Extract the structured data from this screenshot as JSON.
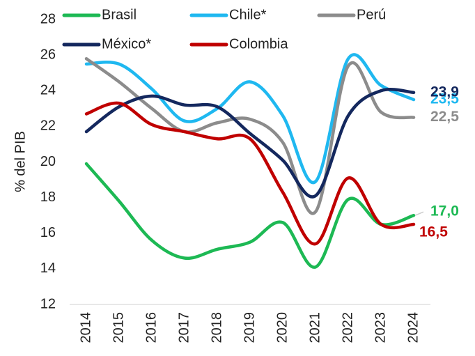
{
  "chart_data": {
    "type": "line",
    "y_label": "% del PIB",
    "categories": [
      "2014",
      "2015",
      "2016",
      "2017",
      "2018",
      "2019",
      "2020",
      "2021",
      "2022",
      "2023",
      "2024"
    ],
    "ylim": [
      12,
      28
    ],
    "yticks": [
      12,
      14,
      16,
      18,
      20,
      22,
      24,
      26,
      28
    ],
    "series": [
      {
        "name": "Brasil",
        "color": "#1db954",
        "values": [
          19.9,
          17.8,
          15.6,
          14.6,
          15.1,
          15.5,
          16.6,
          14.1,
          17.9,
          16.5,
          17.0
        ],
        "value_labels": [
          null,
          null,
          null,
          null,
          null,
          null,
          null,
          null,
          null,
          null,
          "17,0"
        ]
      },
      {
        "name": "Chile*",
        "color": "#1fb8f0",
        "values": [
          25.5,
          25.5,
          24.1,
          22.3,
          23.0,
          24.5,
          22.6,
          18.9,
          25.8,
          24.3,
          23.5
        ],
        "value_labels": [
          null,
          null,
          null,
          null,
          null,
          null,
          null,
          null,
          null,
          null,
          "23,5"
        ]
      },
      {
        "name": "Perú",
        "color": "#8c8c8c",
        "values": [
          25.8,
          24.5,
          23.0,
          21.7,
          22.2,
          22.4,
          21.1,
          17.2,
          25.4,
          22.8,
          22.5
        ],
        "value_labels": [
          null,
          null,
          null,
          null,
          null,
          null,
          null,
          null,
          null,
          null,
          "22,5"
        ]
      },
      {
        "name": "México*",
        "color": "#14285e",
        "values": [
          21.7,
          23.1,
          23.7,
          23.2,
          23.1,
          21.6,
          20.1,
          18.1,
          22.6,
          24.0,
          23.9
        ],
        "value_labels": [
          null,
          null,
          null,
          null,
          null,
          null,
          null,
          null,
          null,
          null,
          "23,9"
        ]
      },
      {
        "name": "Colombia",
        "color": "#c00000",
        "values": [
          22.7,
          23.3,
          22.1,
          21.7,
          21.3,
          21.3,
          18.3,
          15.4,
          19.1,
          16.5,
          16.5
        ],
        "value_labels": [
          null,
          null,
          null,
          null,
          null,
          null,
          null,
          null,
          null,
          null,
          "16,5"
        ]
      }
    ]
  }
}
